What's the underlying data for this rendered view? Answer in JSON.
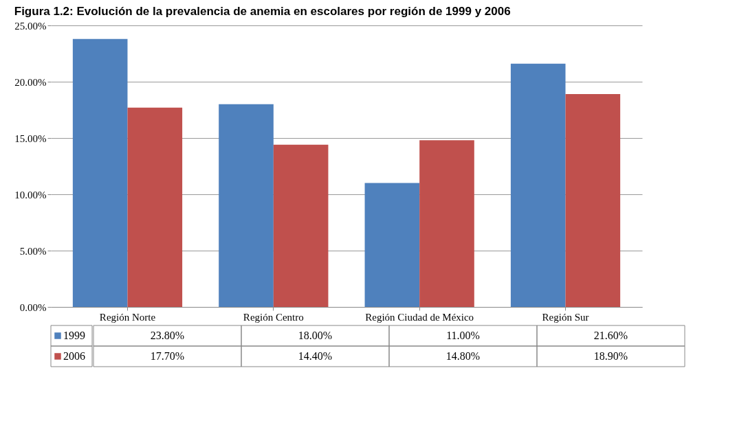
{
  "chart_data": {
    "type": "bar",
    "title": "Figura 1.2: Evolución de la prevalencia de anemia en escolares por región de 1999 y 2006",
    "categories": [
      "Región Norte",
      "Región Centro",
      "Región Ciudad de México",
      "Región Sur"
    ],
    "series": [
      {
        "name": "1999",
        "color": "#4f81bd",
        "values": [
          23.8,
          18.0,
          11.0,
          21.6
        ],
        "value_labels": [
          "23.80%",
          "18.00%",
          "11.00%",
          "21.60%"
        ]
      },
      {
        "name": "2006",
        "color": "#c0504d",
        "values": [
          17.7,
          14.4,
          14.8,
          18.9
        ],
        "value_labels": [
          "17.70%",
          "14.40%",
          "14.80%",
          "18.90%"
        ]
      }
    ],
    "ylim": [
      0,
      25
    ],
    "yticks": [
      {
        "value": 0,
        "label": "0.00%"
      },
      {
        "value": 5,
        "label": "5.00%"
      },
      {
        "value": 10,
        "label": "10.00%"
      },
      {
        "value": 15,
        "label": "15.00%"
      },
      {
        "value": 20,
        "label": "20.00%"
      },
      {
        "value": 25,
        "label": "25.00%"
      }
    ],
    "grid": "y",
    "legend": "bottom"
  }
}
